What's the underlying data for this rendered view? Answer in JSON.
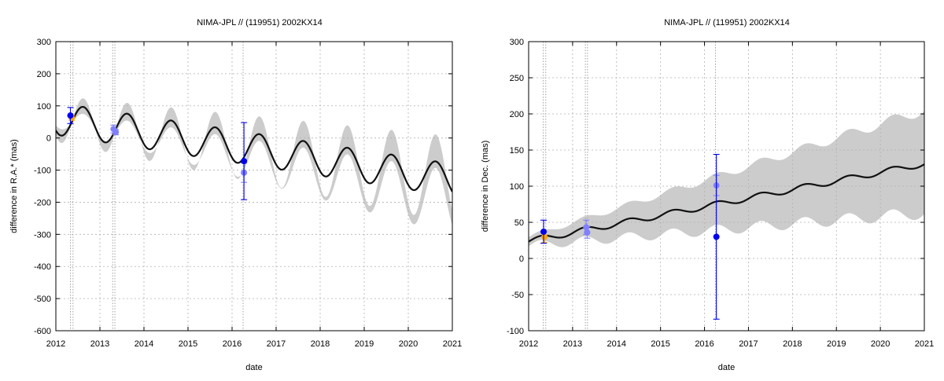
{
  "colors": {
    "band": "#cccccc",
    "curve": "#111111",
    "grid": "#b0b0b0",
    "obs_current": "#0000ee",
    "obs_other": "#8080ff",
    "obs_orange": "#ffa500",
    "vline": "#999999"
  },
  "chart_data": [
    {
      "type": "line",
      "title": "NIMA-JPL // (119951) 2002KX14",
      "xlabel": "date",
      "ylabel": "difference in R.A.* (mas)",
      "xlim": [
        2012,
        2021
      ],
      "ylim": [
        -600,
        300
      ],
      "xticks": [
        "2012",
        "2013",
        "2014",
        "2015",
        "2016",
        "2017",
        "2018",
        "2019",
        "2020",
        "2021"
      ],
      "yticks": [
        "-600",
        "-500",
        "-400",
        "-300",
        "-200",
        "-100",
        "0",
        "100",
        "200",
        "300"
      ],
      "grid": true,
      "vertical_lines": [
        2012.33,
        2012.39,
        2013.29,
        2013.34,
        2016.25
      ],
      "model": {
        "trend": [
          60,
          -21.2
        ],
        "wiggle": {
          "amplitude": 50,
          "period": 1.0,
          "phase_peak": 2012.62
        }
      },
      "band": {
        "upper": {
          "base": 60,
          "slope": -21,
          "amp": 72,
          "amp_growth": 7
        },
        "lower": {
          "base": 60,
          "slope": -29,
          "amp": 28,
          "amp_growth": 8
        }
      },
      "observations": [
        {
          "x": 2012.33,
          "y": 70,
          "err": 25,
          "series": "current"
        },
        {
          "x": 2012.36,
          "y": 63,
          "err": 8,
          "series": "orange"
        },
        {
          "x": 2013.31,
          "y": 28,
          "err": 12,
          "series": "other"
        },
        {
          "x": 2013.36,
          "y": 18,
          "err": 8,
          "series": "other"
        },
        {
          "x": 2016.27,
          "y": -72,
          "err": 120,
          "series": "current"
        },
        {
          "x": 2016.27,
          "y": -108,
          "err": 30,
          "series": "other"
        }
      ]
    },
    {
      "type": "line",
      "title": "NIMA-JPL // (119951) 2002KX14",
      "xlabel": "date",
      "ylabel": "difference in Dec. (mas)",
      "xlim": [
        2012,
        2021
      ],
      "ylim": [
        -100,
        300
      ],
      "xticks": [
        "2012",
        "2013",
        "2014",
        "2015",
        "2016",
        "2017",
        "2018",
        "2019",
        "2020",
        "2021"
      ],
      "yticks": [
        "-100",
        "-50",
        "0",
        "50",
        "100",
        "150",
        "200",
        "250",
        "300"
      ],
      "grid": true,
      "vertical_lines": [
        2012.33,
        2012.39,
        2013.29,
        2013.34,
        2016.25
      ],
      "model": {
        "trend": [
          24,
          11.9
        ],
        "wiggle": {
          "amplitude": 4,
          "period": 1.0,
          "phase_peak": 2013.28
        }
      },
      "band": {
        "upper": {
          "base": 30,
          "slope": 19.5,
          "amp": 3,
          "amp_growth": 0.5
        },
        "lower": {
          "base": 18,
          "slope": 5,
          "amp": 6,
          "amp_growth": 0.3
        }
      },
      "observations": [
        {
          "x": 2012.34,
          "y": 37,
          "err": 16,
          "series": "current"
        },
        {
          "x": 2012.36,
          "y": 30,
          "err": 8,
          "series": "orange"
        },
        {
          "x": 2013.31,
          "y": 43,
          "err": 10,
          "series": "other"
        },
        {
          "x": 2013.33,
          "y": 36,
          "err": 8,
          "series": "other"
        },
        {
          "x": 2016.27,
          "y": 30,
          "err": 114,
          "series": "current"
        },
        {
          "x": 2016.27,
          "y": 101,
          "err": 14,
          "series": "other"
        }
      ]
    }
  ]
}
